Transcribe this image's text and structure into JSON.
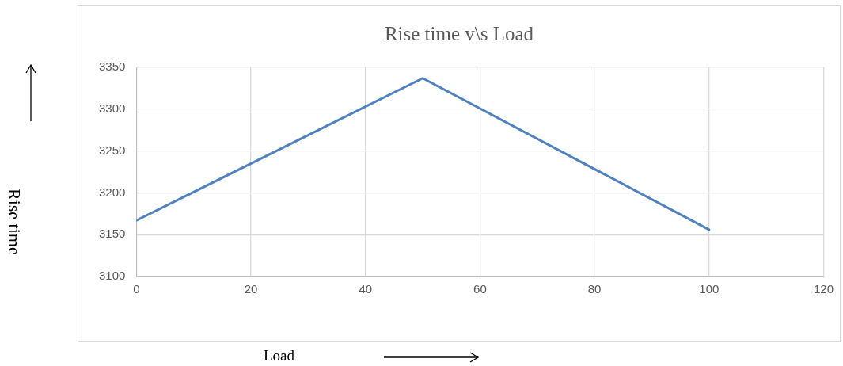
{
  "chart_data": {
    "type": "line",
    "title": "Rise time v\\s Load",
    "xlabel": "Load",
    "ylabel": "Rise time",
    "series": [
      {
        "color": "#4f81bd",
        "x": [
          0,
          50,
          100
        ],
        "values": [
          3167,
          3337,
          3156
        ]
      }
    ],
    "xlim": [
      0,
      120
    ],
    "xticks": [
      0,
      20,
      40,
      60,
      80,
      100,
      120
    ],
    "ylim": [
      3100,
      3350
    ],
    "yticks": [
      3100,
      3150,
      3200,
      3250,
      3300,
      3350
    ],
    "grid": true,
    "legend": false,
    "marker": "none",
    "line_style": "solid"
  }
}
